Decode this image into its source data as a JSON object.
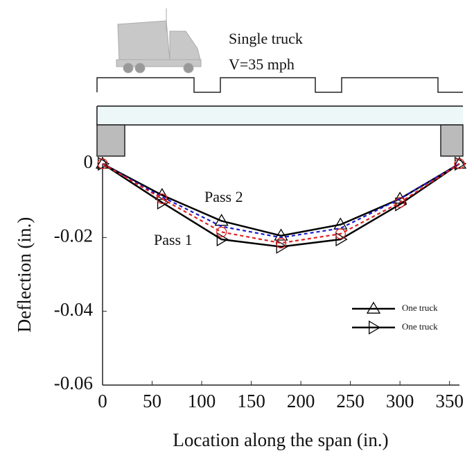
{
  "chart_data": {
    "type": "line",
    "annotations": [
      "Single truck",
      "V=35 mph",
      "Pass 2",
      "Pass 1"
    ],
    "xlabel": "Location along the span (in.)",
    "ylabel": "Deflection (in.)",
    "x": [
      0,
      60,
      120,
      180,
      240,
      300,
      360
    ],
    "series": [
      {
        "name": "One truck",
        "color": "#000000",
        "marker": "triangle-up",
        "dash": false,
        "values": [
          0,
          -0.0085,
          -0.0155,
          -0.0195,
          -0.0165,
          -0.0095,
          0
        ]
      },
      {
        "name": "One truck",
        "color": "#000000",
        "marker": "triangle-right",
        "dash": false,
        "values": [
          0,
          -0.0105,
          -0.0205,
          -0.0225,
          -0.0205,
          -0.011,
          0
        ]
      },
      {
        "color": "#1a1acc",
        "marker": "none",
        "dash": true,
        "values": [
          0,
          -0.009,
          -0.017,
          -0.02,
          -0.0175,
          -0.0095,
          0
        ]
      },
      {
        "color": "#dd2222",
        "marker": "circle",
        "dash": true,
        "values": [
          0,
          -0.0095,
          -0.0185,
          -0.0215,
          -0.019,
          -0.0105,
          0
        ]
      }
    ],
    "xlim": [
      0,
      360
    ],
    "xticks": [
      0,
      50,
      100,
      150,
      200,
      250,
      300,
      350
    ],
    "ylim": [
      -0.06,
      0
    ],
    "yticks": [
      0,
      -0.02,
      -0.04,
      -0.06
    ],
    "legend": "lower-right"
  }
}
